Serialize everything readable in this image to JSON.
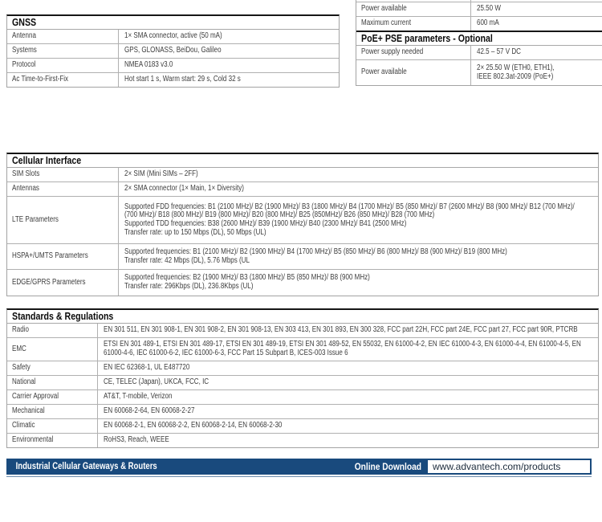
{
  "gnss_table": {
    "title": "GNSS",
    "rows": [
      {
        "label": "Antenna",
        "value": "1× SMA connector, active (50 mA)"
      },
      {
        "label": "Systems",
        "value": "GPS, GLONASS, BeiDou, Galileo"
      },
      {
        "label": "Protocol",
        "value": "NMEA 0183 v3.0"
      },
      {
        "label": "Ac Time-to-First-Fix",
        "value": "Hot start 1 s, Warm start: 29 s, Cold 32 s"
      }
    ]
  },
  "power_table": {
    "rows_top": [
      {
        "label": "Power available",
        "value": "25.50 W"
      },
      {
        "label": "Maximum current",
        "value": "600 mA"
      }
    ],
    "section_title": "PoE+ PSE parameters - Optional",
    "rows_bottom": [
      {
        "label": "Power supply needed",
        "value": "42.5 – 57 V DC"
      },
      {
        "label": "Power available",
        "value": "2× 25.50 W (ETH0, ETH1),\nIEEE 802.3at-2009 (PoE+)"
      }
    ]
  },
  "cellular_table": {
    "title": "Cellular Interface",
    "rows": [
      {
        "label": "SIM Slots",
        "value": "2× SIM (Mini SIMs – 2FF)"
      },
      {
        "label": "Antennas",
        "value": "2× SMA connector (1× Main, 1× Diversity)"
      },
      {
        "label": "LTE Parameters",
        "value": "Supported FDD frequencies: B1 (2100 MHz)/ B2 (1900 MHz)/ B3 (1800 MHz)/ B4 (1700 MHz)/ B5 (850 MHz)/ B7 (2600 MHz)/ B8 (900 MHz)/ B12 (700 MHz)/\n(700 MHz)/ B18 (800 MHz)/ B19 (800 MHz)/ B20 (800 MHz)/ B25 (850MHz)/ B26 (850 MHz)/ B28 (700 MHz)\nSupported TDD frequencies: B38 (2600 MHz)/ B39 (1900 MHz)/ B40 (2300 MHz)/ B41 (2500 MHz)\nTransfer rate: up to 150 Mbps (DL), 50 Mbps (UL)"
      },
      {
        "label": "HSPA+/UMTS Parameters",
        "value": "Supported frequencies: B1 (2100 MHz)/ B2 (1900 MHz)/ B4 (1700 MHz)/ B5 (850 MHz)/ B6 (800 MHz)/ B8 (900 MHz)/ B19 (800 MHz)\nTransfer rate: 42 Mbps (DL), 5.76 Mbps (UL"
      },
      {
        "label": "EDGE/GPRS Parameters",
        "value": "Supported frequencies: B2 (1900 MHz)/ B3 (1800 MHz)/ B5 (850 MHz)/ B8 (900 MHz)\nTransfer rate: 296Kbps (DL), 236.8Kbps (UL)"
      }
    ]
  },
  "standards_table": {
    "title": "Standards & Regulations",
    "rows": [
      {
        "label": "Radio",
        "value": "EN 301 511, EN 301 908-1, EN 301 908-2, EN 301 908-13, EN 303 413, EN 301 893, EN 300 328, FCC part 22H, FCC part 24E, FCC part 27, FCC part 90R, PTCRB"
      },
      {
        "label": "EMC",
        "value": "ETSI EN 301 489-1, ETSI EN 301 489-17, ETSI EN 301 489-19, ETSI EN 301 489-52, EN 55032, EN 61000-4-2, EN IEC 61000-4-3, EN 61000-4-4, EN 61000-4-5, EN\n61000-4-6, IEC 61000-6-2, IEC 61000-6-3, FCC Part 15 Subpart B, ICES-003 Issue 6"
      },
      {
        "label": "Safety",
        "value": "EN IEC 62368-1, UL E487720"
      },
      {
        "label": "National",
        "value": "CE, TELEC (Japan), UKCA, FCC, IC"
      },
      {
        "label": "Carrier Approval",
        "value": "AT&T, T-mobile, Verizon"
      },
      {
        "label": "Mechanical",
        "value": "EN 60068-2-64, EN 60068-2-27"
      },
      {
        "label": "Climatic",
        "value": "EN 60068-2-1, EN 60068-2-2, EN 60068-2-14, EN 60068-2-30"
      },
      {
        "label": "Environmental",
        "value": "RoHS3, Reach, WEEE"
      }
    ]
  },
  "footer": {
    "product_line": "Industrial Cellular Gateways & Routers",
    "download_label": "Online Download",
    "url": "www.advantech.com/products"
  },
  "colors": {
    "footer_bar": "#194a7d",
    "thick_border": "#161616",
    "thin_border": "#a8a8a8",
    "body_text": "#3d3d3d"
  }
}
